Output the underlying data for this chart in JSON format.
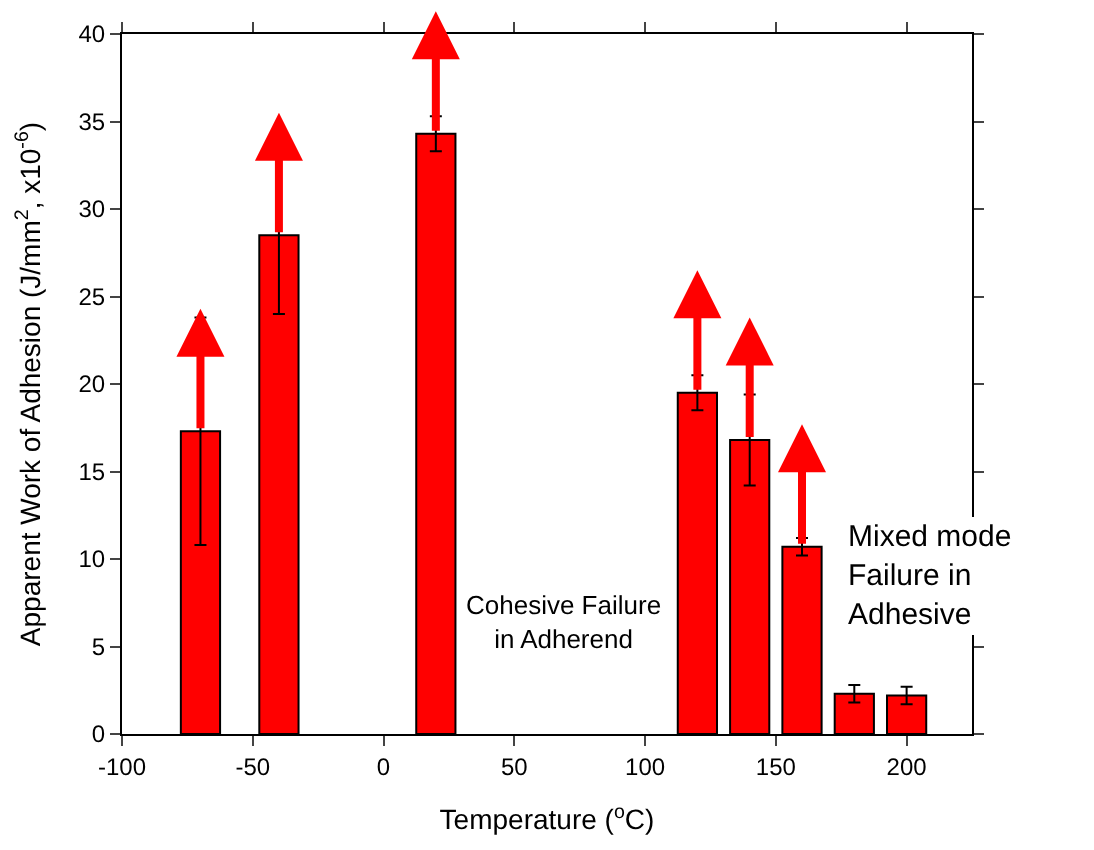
{
  "chart_data": {
    "type": "bar",
    "xlabel": "Temperature ($^{o}$C)",
    "ylabel": "Apparent Work of Adhesion (J/mm$^{2}$, x10$^{-6}$)",
    "series": [
      {
        "color": "#ff0000",
        "x": [
          -70,
          -40,
          20,
          120,
          140,
          160
        ],
        "values": [
          17.3,
          28.5,
          34.3,
          19.5,
          16.8,
          10.7
        ],
        "errors": [
          6.5,
          4.5,
          1,
          1,
          2.6,
          0.5
        ]
      },
      {
        "color": "#ff0000",
        "x": [
          180,
          200
        ],
        "values": [
          2.3,
          2.2
        ],
        "errors": [
          0.5,
          0.5
        ]
      }
    ],
    "xlim": [
      -100,
      225
    ],
    "xticks": [
      -100,
      -50,
      0,
      50,
      100,
      150,
      200
    ],
    "ylim": [
      0,
      40
    ],
    "yticks": [
      0,
      5,
      10,
      15,
      20,
      25,
      30,
      35,
      40
    ],
    "annotations": [
      "Cohesive Failure\nin Adherend",
      "Mixed mode\nFailure in\nAdhesive"
    ],
    "grid": false,
    "legend": false
  }
}
